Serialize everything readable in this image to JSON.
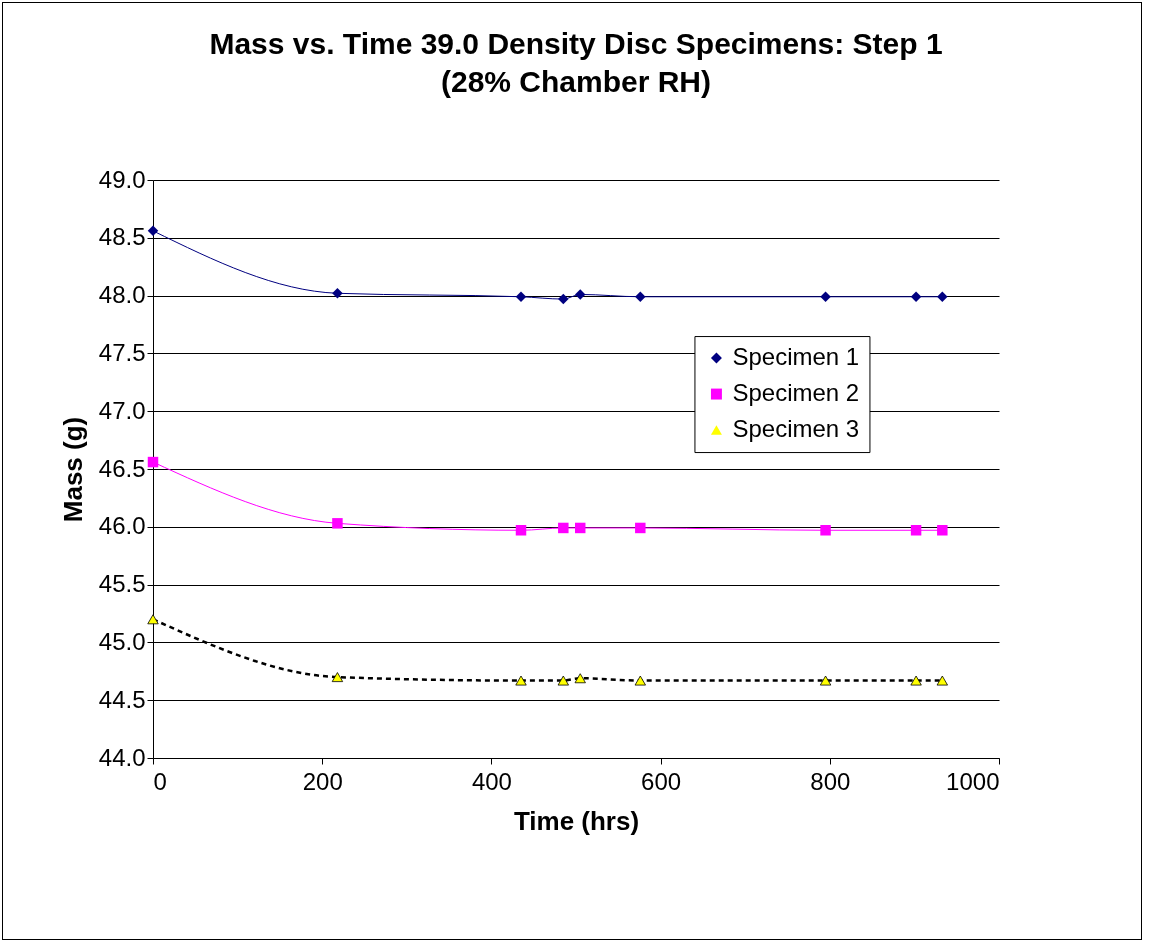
{
  "chart_data": {
    "type": "line",
    "title": "Mass vs. Time 39.0 Density Disc Specimens: Step 1",
    "subtitle": "(28% Chamber RH)",
    "xlabel": "Time (hrs)",
    "ylabel": "Mass (g)",
    "x": [
      0,
      218,
      435,
      485,
      505,
      576,
      795,
      902,
      933
    ],
    "series": [
      {
        "name": "Specimen 1",
        "color": "#000080",
        "marker": "diamond",
        "line_style": "solid",
        "values": [
          48.56,
          48.02,
          47.99,
          47.97,
          48.01,
          47.99,
          47.99,
          47.99,
          47.99
        ]
      },
      {
        "name": "Specimen 2",
        "color": "#ff00ff",
        "marker": "square",
        "line_style": "solid",
        "values": [
          46.56,
          46.03,
          45.97,
          45.99,
          45.99,
          45.99,
          45.97,
          45.97,
          45.97
        ]
      },
      {
        "name": "Specimen 3",
        "color": "#ffff00",
        "marker": "triangle",
        "line_style": "dashed",
        "values": [
          45.2,
          44.7,
          44.67,
          44.67,
          44.69,
          44.67,
          44.67,
          44.67,
          44.67
        ]
      }
    ],
    "xlim": [
      0,
      1000
    ],
    "xticks": [
      0,
      200,
      400,
      600,
      800,
      1000
    ],
    "ylim": [
      44,
      49
    ],
    "yticks": [
      {
        "value": 44,
        "label": "44.0"
      },
      {
        "value": 44.5,
        "label": "44.5"
      },
      {
        "value": 45,
        "label": "45.0"
      },
      {
        "value": 45.5,
        "label": "45.5"
      },
      {
        "value": 46,
        "label": "46.0"
      },
      {
        "value": 46.5,
        "label": "46.5"
      },
      {
        "value": 47,
        "label": "47.0"
      },
      {
        "value": 47.5,
        "label": "47.5"
      },
      {
        "value": 48,
        "label": "48.0"
      },
      {
        "value": 48.5,
        "label": "48.5"
      },
      {
        "value": 49,
        "label": "49.0"
      }
    ],
    "grid": "y",
    "legend": "right"
  }
}
